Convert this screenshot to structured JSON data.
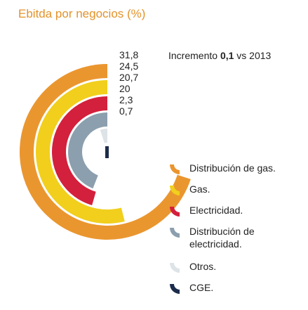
{
  "chart_data": {
    "type": "pie",
    "title": "Ebitda por negocios (%)",
    "note_prefix": "Incremento ",
    "note_value": "0,1",
    "note_suffix": " vs 2013",
    "series": [
      {
        "name": "Distribución de gas.",
        "value": 31.8,
        "label": "31,8",
        "color": "#ea962f"
      },
      {
        "name": "Gas.",
        "value": 24.5,
        "label": "24,5",
        "color": "#f1cf1c"
      },
      {
        "name": "Electricidad.",
        "value": 20.7,
        "label": "20,7",
        "color": "#d3203c"
      },
      {
        "name": "Distribución de electricidad.",
        "value": 20,
        "label": "20",
        "color": "#8c9fae"
      },
      {
        "name": "Otros.",
        "value": 2.3,
        "label": "2,3",
        "color": "#dde3e6"
      },
      {
        "name": "CGE.",
        "value": 0.7,
        "label": "0,7",
        "color": "#1c2d4b"
      }
    ]
  }
}
